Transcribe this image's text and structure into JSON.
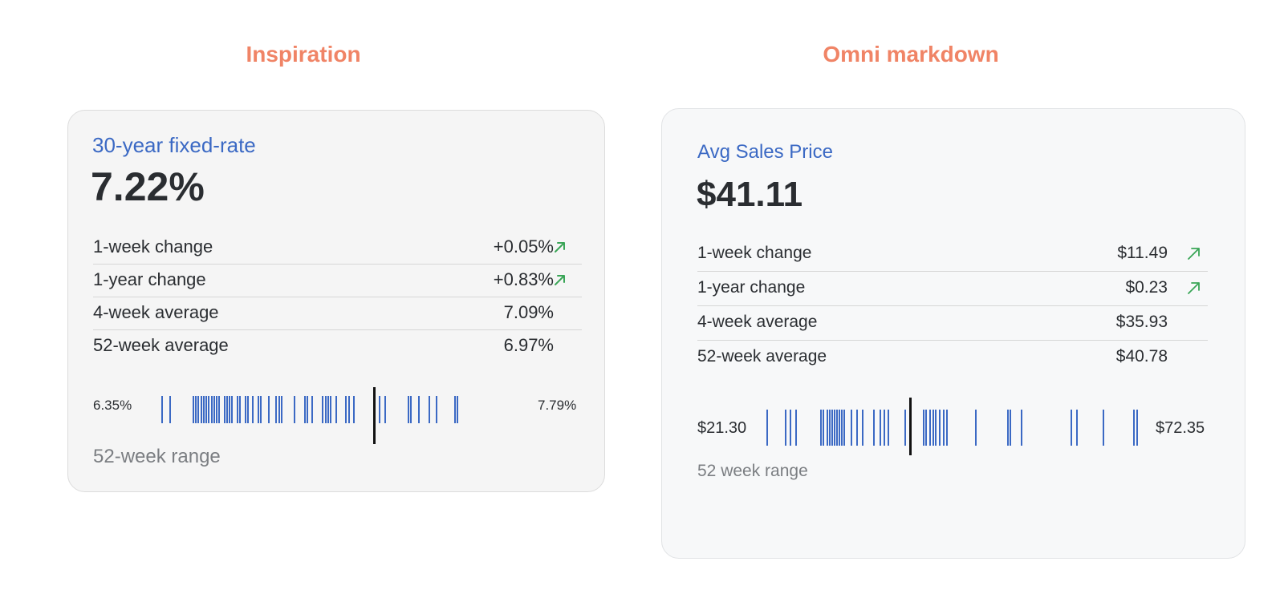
{
  "headings": {
    "left": "Inspiration",
    "right": "Omni markdown"
  },
  "colors": {
    "heading": "#f08466",
    "title": "#3b69c4",
    "tick": "#3b69c4",
    "arrow_up": "#3aa557",
    "marker": "#111111"
  },
  "cards": {
    "left": {
      "title": "30-year fixed-rate",
      "value": "7.22%",
      "stats": [
        {
          "label": "1-week change",
          "value": "+0.05%",
          "arrow": "arrow-up-right-icon"
        },
        {
          "label": "1-year change",
          "value": "+0.83%",
          "arrow": "arrow-up-right-icon"
        },
        {
          "label": "4-week average",
          "value": "7.09%",
          "arrow": ""
        },
        {
          "label": "52-week average",
          "value": "6.97%",
          "arrow": ""
        }
      ],
      "range": {
        "min_label": "6.35%",
        "max_label": "7.79%",
        "caption": "52-week range",
        "min": 6.35,
        "max": 7.79,
        "current": 7.22,
        "ticks": [
          6.4,
          6.43,
          6.52,
          6.53,
          6.54,
          6.55,
          6.56,
          6.57,
          6.58,
          6.59,
          6.6,
          6.61,
          6.62,
          6.64,
          6.65,
          6.66,
          6.67,
          6.69,
          6.7,
          6.72,
          6.73,
          6.75,
          6.77,
          6.78,
          6.81,
          6.84,
          6.85,
          6.86,
          6.91,
          6.95,
          6.96,
          6.98,
          7.02,
          7.03,
          7.04,
          7.05,
          7.07,
          7.11,
          7.12,
          7.14,
          7.24,
          7.26,
          7.35,
          7.36,
          7.39,
          7.43,
          7.46,
          7.53,
          7.54
        ]
      }
    },
    "right": {
      "title": "Avg Sales Price",
      "value": "$41.11",
      "stats": [
        {
          "label": "1-week change",
          "value": "$11.49",
          "arrow": "arrow-up-right-icon"
        },
        {
          "label": "1-year change",
          "value": "$0.23",
          "arrow": "arrow-up-right-icon"
        },
        {
          "label": "4-week average",
          "value": "$35.93",
          "arrow": ""
        },
        {
          "label": "52-week average",
          "value": "$40.78",
          "arrow": ""
        }
      ],
      "range": {
        "min_label": "$21.30",
        "max_label": "$72.35",
        "caption": "52 week range",
        "min": 21.3,
        "max": 72.35,
        "current": 41.11,
        "ticks": [
          22.3,
          24.8,
          25.4,
          26.1,
          29.4,
          29.7,
          30.2,
          30.6,
          30.9,
          31.2,
          31.5,
          31.8,
          32.1,
          32.5,
          33.4,
          34.1,
          34.9,
          36.3,
          37.2,
          37.7,
          38.2,
          40.4,
          42.9,
          43.2,
          43.7,
          44.1,
          44.5,
          45.0,
          45.5,
          45.9,
          49.7,
          53.9,
          54.2,
          55.7,
          62.2,
          63.0,
          66.5,
          70.5,
          70.9
        ]
      }
    }
  }
}
